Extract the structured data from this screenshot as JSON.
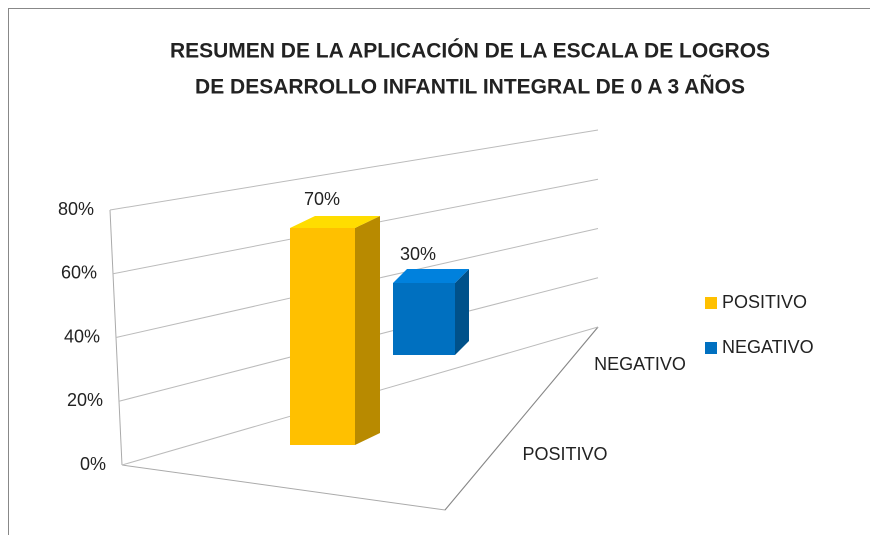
{
  "chart_data": {
    "type": "bar3d",
    "title": [
      "RESUMEN DE LA APLICACIÓN DE LA ESCALA DE LOGROS",
      "DE  DESARROLLO INFANTIL INTEGRAL DE 0 A 3 AÑOS"
    ],
    "series": [
      {
        "name": "POSITIVO",
        "color": "#ffc000",
        "values": [
          70
        ],
        "value_labels": [
          "70%"
        ]
      },
      {
        "name": "NEGATIVO",
        "color": "#0070c0",
        "values": [
          30
        ],
        "value_labels": [
          "30%"
        ]
      }
    ],
    "ylim": [
      0,
      80
    ],
    "yticks": [
      {
        "value": 0,
        "label": "0%"
      },
      {
        "value": 20,
        "label": "20%"
      },
      {
        "value": 40,
        "label": "40%"
      },
      {
        "value": 60,
        "label": "60%"
      },
      {
        "value": 80,
        "label": "80%"
      }
    ],
    "grid": true,
    "legend": "right"
  }
}
